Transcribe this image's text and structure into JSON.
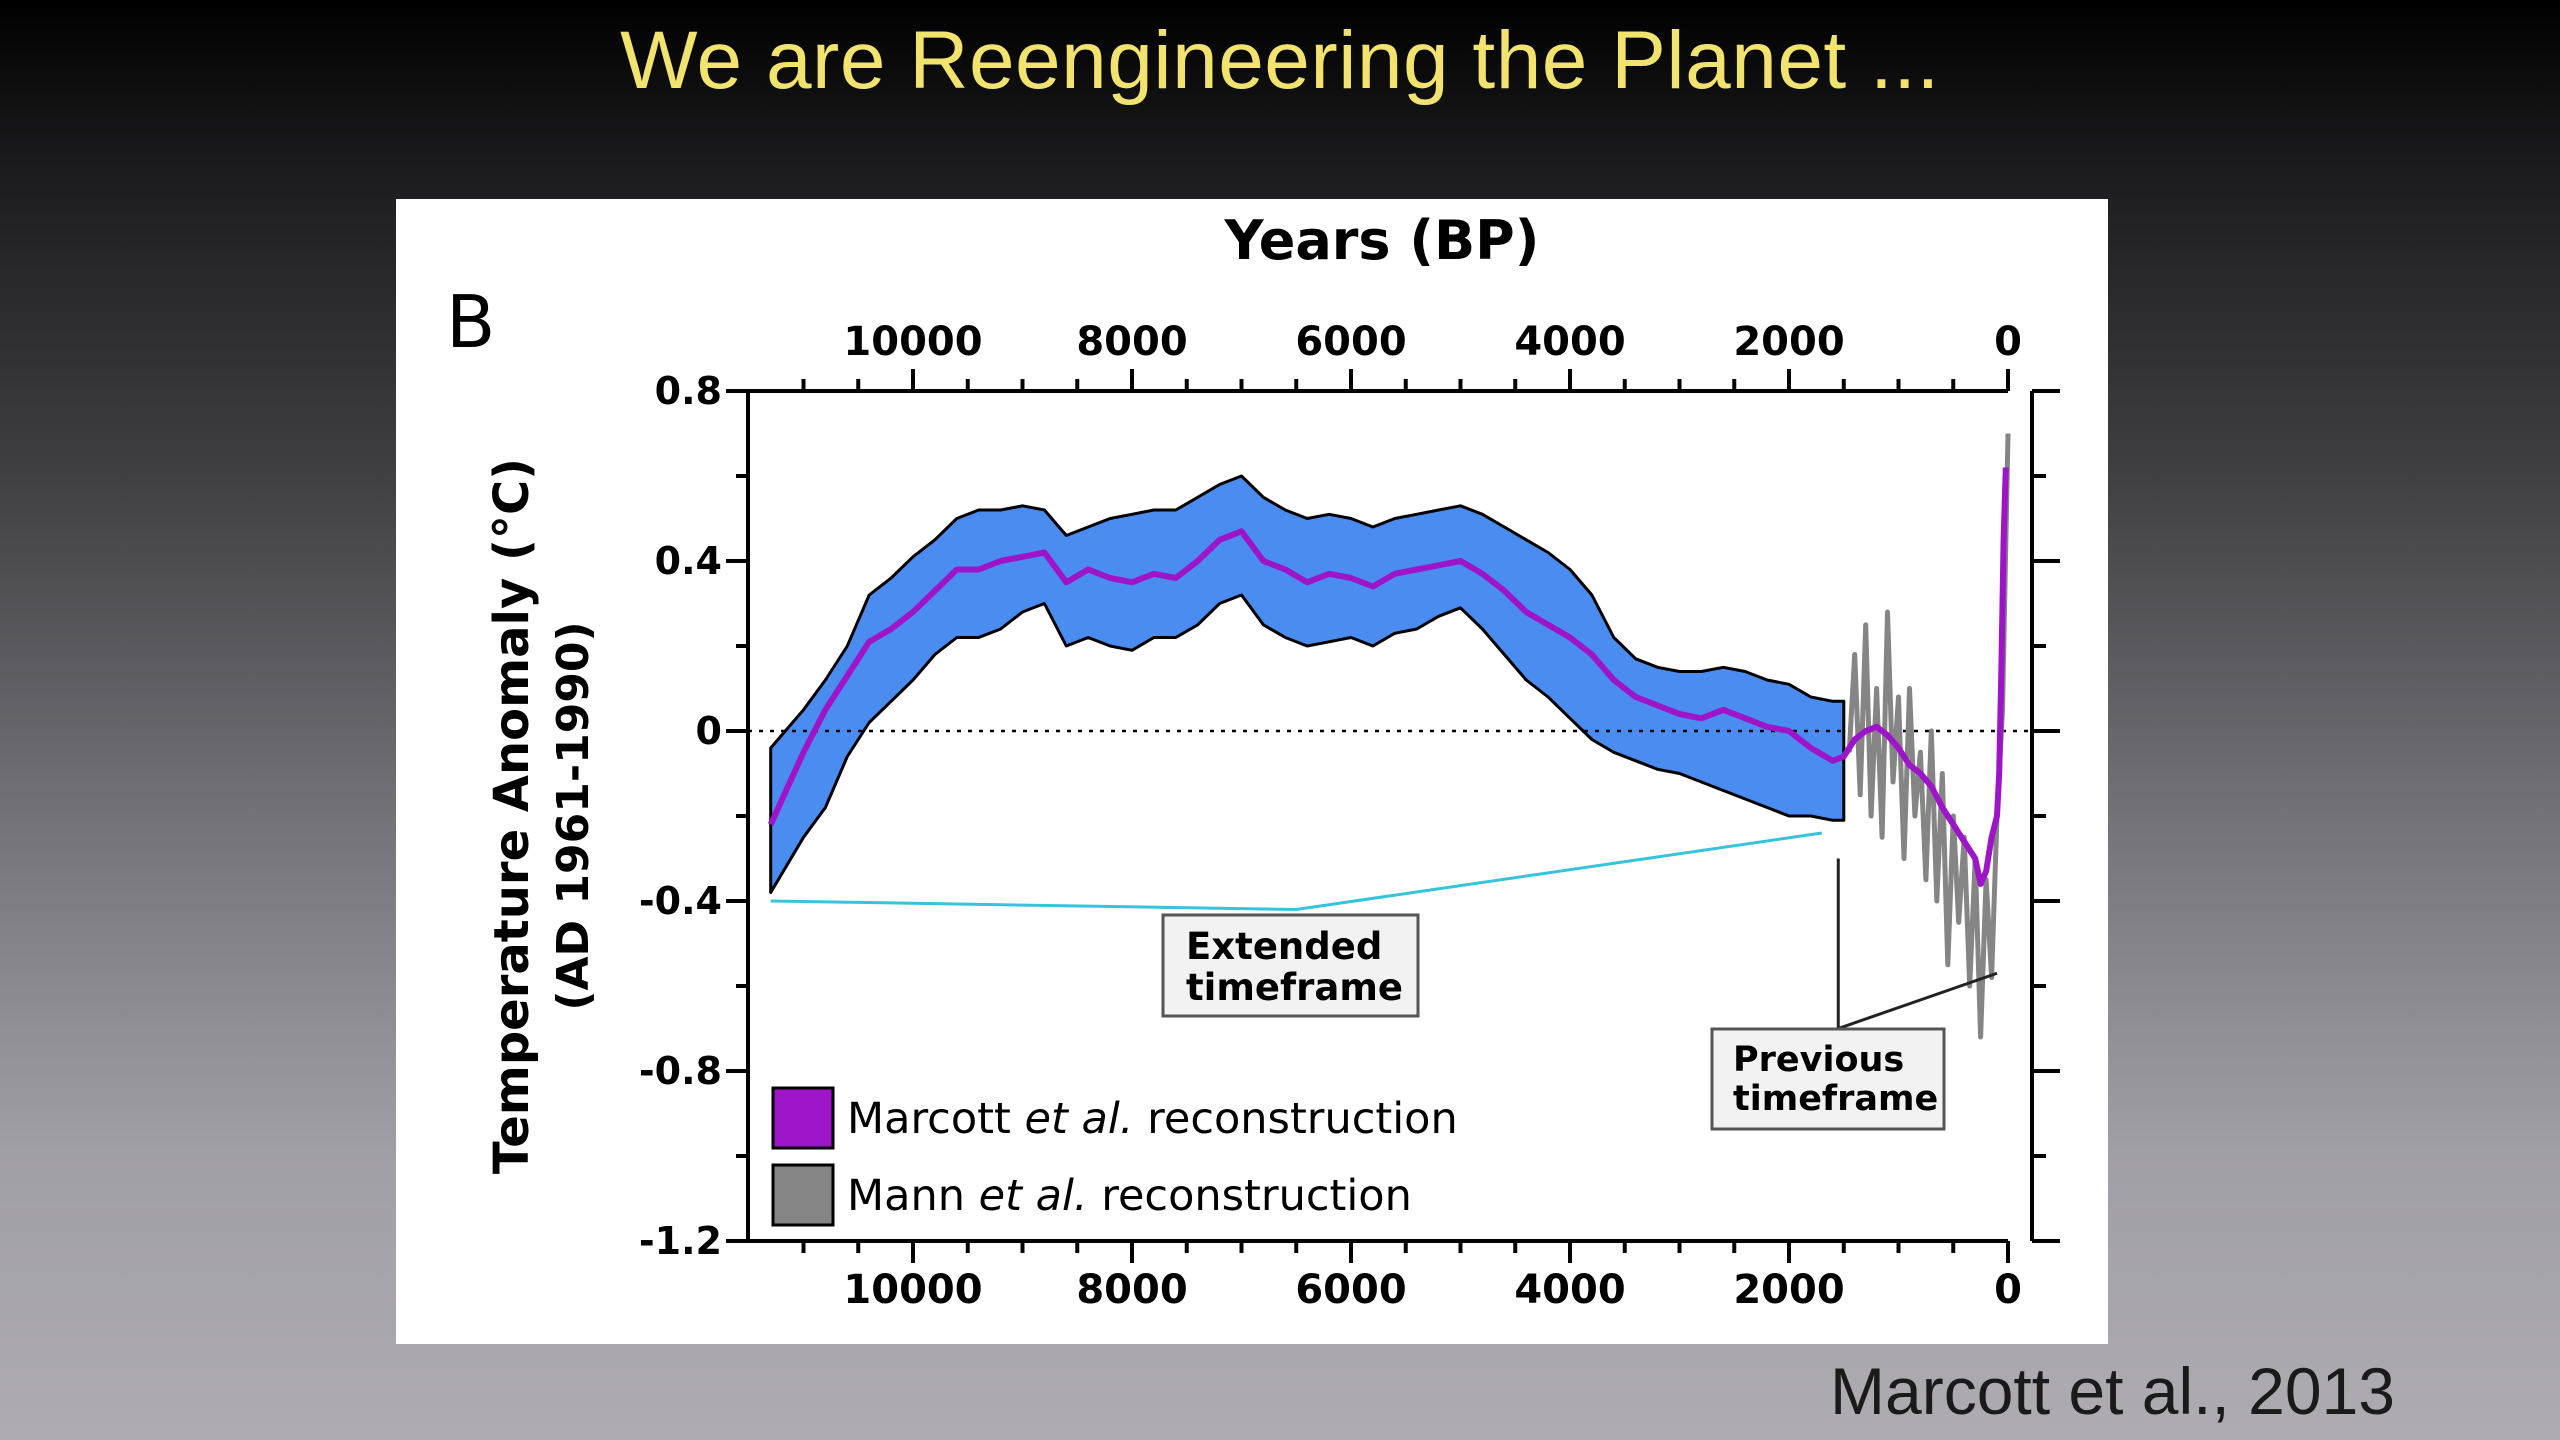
{
  "slide": {
    "title": "We are Reengineering the Planet ...",
    "citation": "Marcott et al., 2013"
  },
  "colors": {
    "band": "#4a8cf0",
    "marcott": "#9e14c8",
    "mann": "#858585",
    "callout_line": "#35c4dc",
    "title": "#f2e26e"
  },
  "chart_data": {
    "type": "line",
    "panel_label": "B",
    "top_axis_title": "Years (BP)",
    "ylabel_line1": "Temperature Anomaly (°C)",
    "ylabel_line2": "(AD 1961-1990)",
    "x_reversed": true,
    "xlim": [
      11500,
      -50
    ],
    "ylim": [
      -1.2,
      0.8
    ],
    "x_ticks": [
      10000,
      8000,
      6000,
      4000,
      2000,
      0
    ],
    "x_tick_labels": [
      "10000",
      "8000",
      "6000",
      "4000",
      "2000",
      "0"
    ],
    "y_ticks": [
      0.8,
      0.4,
      0,
      -0.4,
      -0.8,
      -1.2
    ],
    "y_tick_labels": [
      "0.8",
      "0.4",
      "0",
      "-0.4",
      "-0.8",
      "-1.2"
    ],
    "zero_line": "dotted",
    "series": [
      {
        "name": "Marcott et al. reconstruction",
        "legend_name": "Marcott",
        "legend_suffix": "reconstruction",
        "x": [
          11300,
          11000,
          10800,
          10600,
          10400,
          10200,
          10000,
          9800,
          9600,
          9400,
          9200,
          9000,
          8800,
          8600,
          8400,
          8200,
          8000,
          7800,
          7600,
          7400,
          7200,
          7000,
          6800,
          6600,
          6400,
          6200,
          6000,
          5800,
          5600,
          5400,
          5200,
          5000,
          4800,
          4600,
          4400,
          4200,
          4000,
          3800,
          3600,
          3400,
          3200,
          3000,
          2800,
          2600,
          2400,
          2200,
          2000,
          1800,
          1600,
          1500,
          1400,
          1300,
          1200,
          1100,
          1000,
          900,
          800,
          700,
          600,
          500,
          400,
          300,
          250,
          200,
          150,
          100,
          80,
          60,
          40,
          20
        ],
        "values": [
          -0.22,
          -0.05,
          0.05,
          0.13,
          0.21,
          0.24,
          0.28,
          0.33,
          0.38,
          0.38,
          0.4,
          0.41,
          0.42,
          0.35,
          0.38,
          0.36,
          0.35,
          0.37,
          0.36,
          0.4,
          0.45,
          0.47,
          0.4,
          0.38,
          0.35,
          0.37,
          0.36,
          0.34,
          0.37,
          0.38,
          0.39,
          0.4,
          0.37,
          0.33,
          0.28,
          0.25,
          0.22,
          0.18,
          0.12,
          0.08,
          0.06,
          0.04,
          0.03,
          0.05,
          0.03,
          0.01,
          0.0,
          -0.04,
          -0.07,
          -0.06,
          -0.02,
          0.0,
          0.01,
          -0.01,
          -0.04,
          -0.08,
          -0.1,
          -0.13,
          -0.18,
          -0.22,
          -0.26,
          -0.3,
          -0.36,
          -0.33,
          -0.25,
          -0.2,
          -0.1,
          0.15,
          0.45,
          0.62
        ]
      },
      {
        "name": "Marcott et al. uncertainty band",
        "x": [
          11300,
          11000,
          10800,
          10600,
          10400,
          10200,
          10000,
          9800,
          9600,
          9400,
          9200,
          9000,
          8800,
          8600,
          8400,
          8200,
          8000,
          7800,
          7600,
          7400,
          7200,
          7000,
          6800,
          6600,
          6400,
          6200,
          6000,
          5800,
          5600,
          5400,
          5200,
          5000,
          4800,
          4600,
          4400,
          4200,
          4000,
          3800,
          3600,
          3400,
          3200,
          3000,
          2800,
          2600,
          2400,
          2200,
          2000,
          1800,
          1600,
          1500
        ],
        "upper": [
          -0.04,
          0.05,
          0.12,
          0.2,
          0.32,
          0.36,
          0.41,
          0.45,
          0.5,
          0.52,
          0.52,
          0.53,
          0.52,
          0.46,
          0.48,
          0.5,
          0.51,
          0.52,
          0.52,
          0.55,
          0.58,
          0.6,
          0.55,
          0.52,
          0.5,
          0.51,
          0.5,
          0.48,
          0.5,
          0.51,
          0.52,
          0.53,
          0.51,
          0.48,
          0.45,
          0.42,
          0.38,
          0.32,
          0.22,
          0.17,
          0.15,
          0.14,
          0.14,
          0.15,
          0.14,
          0.12,
          0.11,
          0.08,
          0.07,
          0.07
        ],
        "lower": [
          -0.38,
          -0.25,
          -0.18,
          -0.06,
          0.02,
          0.07,
          0.12,
          0.18,
          0.22,
          0.22,
          0.24,
          0.28,
          0.3,
          0.2,
          0.22,
          0.2,
          0.19,
          0.22,
          0.22,
          0.25,
          0.3,
          0.32,
          0.25,
          0.22,
          0.2,
          0.21,
          0.22,
          0.2,
          0.23,
          0.24,
          0.27,
          0.29,
          0.24,
          0.18,
          0.12,
          0.08,
          0.03,
          -0.02,
          -0.05,
          -0.07,
          -0.09,
          -0.1,
          -0.12,
          -0.14,
          -0.16,
          -0.18,
          -0.2,
          -0.2,
          -0.21,
          -0.21
        ]
      },
      {
        "name": "Mann et al. reconstruction",
        "legend_name": "Mann",
        "legend_suffix": "reconstruction",
        "x": [
          1450,
          1400,
          1350,
          1300,
          1250,
          1200,
          1150,
          1100,
          1050,
          1000,
          950,
          900,
          850,
          800,
          750,
          700,
          650,
          600,
          550,
          500,
          450,
          400,
          350,
          300,
          250,
          200,
          150,
          100,
          50,
          0
        ],
        "values": [
          -0.05,
          0.18,
          -0.15,
          0.25,
          -0.2,
          0.1,
          -0.25,
          0.28,
          -0.12,
          0.08,
          -0.3,
          0.1,
          -0.2,
          -0.05,
          -0.35,
          0.0,
          -0.4,
          -0.1,
          -0.55,
          -0.2,
          -0.45,
          -0.25,
          -0.6,
          -0.3,
          -0.72,
          -0.35,
          -0.58,
          -0.2,
          0.05,
          0.7
        ]
      }
    ],
    "annotations": [
      {
        "label_line1": "Extended",
        "label_line2": "timeframe"
      },
      {
        "label_line1": "Previous",
        "label_line2": "timeframe"
      }
    ],
    "legend_italic": "et al."
  }
}
